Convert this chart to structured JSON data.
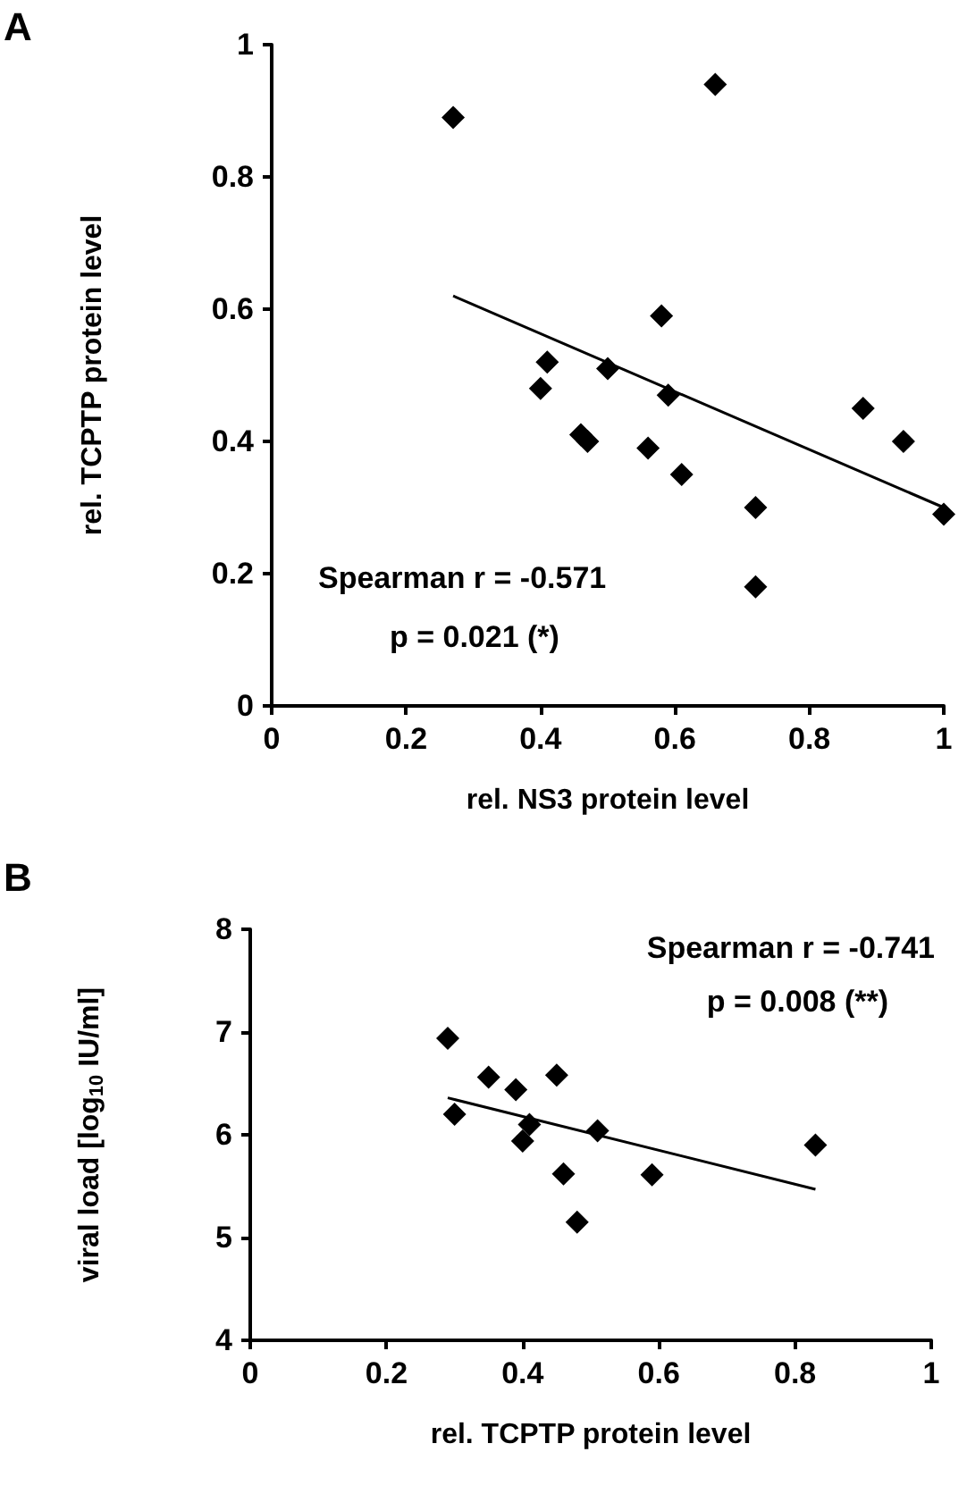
{
  "chart_data": [
    {
      "type": "scatter",
      "title": "A",
      "xlabel": "rel. NS3 protein level",
      "ylabel": "rel. TCPTP protein level",
      "xlim": [
        0,
        1
      ],
      "xticks": [
        0,
        0.2,
        0.4,
        0.6,
        0.8,
        1
      ],
      "ylim": [
        0,
        1
      ],
      "yticks": [
        0,
        0.2,
        0.4,
        0.6,
        0.8,
        1
      ],
      "annotations": [
        "Spearman r = -0.571",
        "p = 0.021 (*)"
      ],
      "series": [
        {
          "type": "scatter",
          "color": "#000000",
          "marker": "diamond",
          "x": [
            0.27,
            0.66,
            0.58,
            0.41,
            0.4,
            0.5,
            0.59,
            0.46,
            0.47,
            0.56,
            0.61,
            0.72,
            0.72,
            0.88,
            0.94,
            1.0
          ],
          "values": [
            0.89,
            0.94,
            0.59,
            0.52,
            0.48,
            0.51,
            0.47,
            0.41,
            0.4,
            0.39,
            0.35,
            0.3,
            0.18,
            0.45,
            0.4,
            0.29
          ]
        },
        {
          "type": "line",
          "color": "#000000",
          "marker": "none",
          "x": [
            0.27,
            1.0
          ],
          "values": [
            0.62,
            0.3
          ]
        }
      ]
    },
    {
      "type": "scatter",
      "title": "B",
      "xlabel": "rel. TCPTP protein level",
      "ylabel": "viral load [log$_{10}$ IU/ml]",
      "xlim": [
        0,
        1
      ],
      "xticks": [
        0,
        0.2,
        0.4,
        0.6,
        0.8,
        1
      ],
      "ylim": [
        4,
        8
      ],
      "yticks": [
        4,
        5,
        6,
        7,
        8
      ],
      "annotations": [
        "Spearman r = -0.741",
        "p = 0.008 (**)"
      ],
      "series": [
        {
          "type": "scatter",
          "color": "#000000",
          "marker": "diamond",
          "x": [
            0.29,
            0.3,
            0.35,
            0.39,
            0.45,
            0.41,
            0.4,
            0.51,
            0.46,
            0.48,
            0.59,
            0.83
          ],
          "values": [
            6.94,
            6.2,
            6.56,
            6.44,
            6.58,
            6.1,
            5.94,
            6.04,
            5.62,
            5.15,
            5.61,
            5.9
          ]
        },
        {
          "type": "line",
          "color": "#000000",
          "marker": "none",
          "x": [
            0.29,
            0.83
          ],
          "values": [
            6.36,
            5.47
          ]
        }
      ]
    }
  ]
}
